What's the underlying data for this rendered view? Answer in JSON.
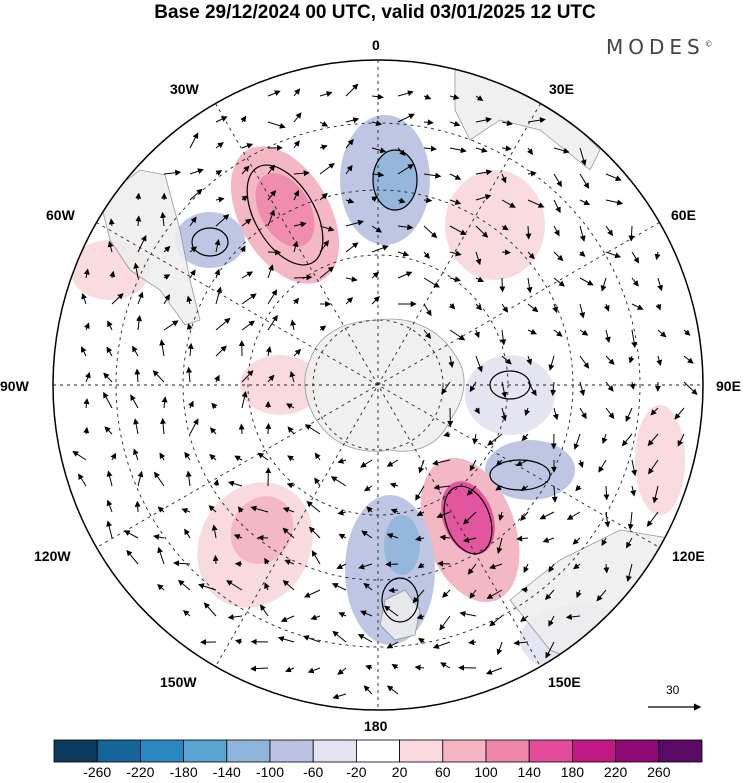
{
  "title": "Base 29/12/2024 00 UTC, valid 03/01/2025 12 UTC",
  "brand": "MODES",
  "brand_mark": "©",
  "longitude_labels": [
    "0",
    "30E",
    "60E",
    "90E",
    "120E",
    "150E",
    "180",
    "150W",
    "120W",
    "90W",
    "60W",
    "30W"
  ],
  "reference_vector": {
    "value": "30"
  },
  "colorbar": {
    "colors": [
      "#0d3a5c",
      "#13659a",
      "#2b87c1",
      "#5aa4d1",
      "#8fb4da",
      "#bcc3e2",
      "#e4e3f1",
      "#ffffff",
      "#f9d9de",
      "#f4b4c1",
      "#ef87aa",
      "#e34c9a",
      "#c21a85",
      "#8f0a76",
      "#5b0a66"
    ],
    "ticks": [
      "-260",
      "-220",
      "-180",
      "-140",
      "-100",
      "-60",
      "-20",
      "20",
      "60",
      "100",
      "140",
      "180",
      "220",
      "260"
    ]
  },
  "icons": {
    "projection": "polar-stereographic-south",
    "arrows": "wind-vector-icon"
  }
}
